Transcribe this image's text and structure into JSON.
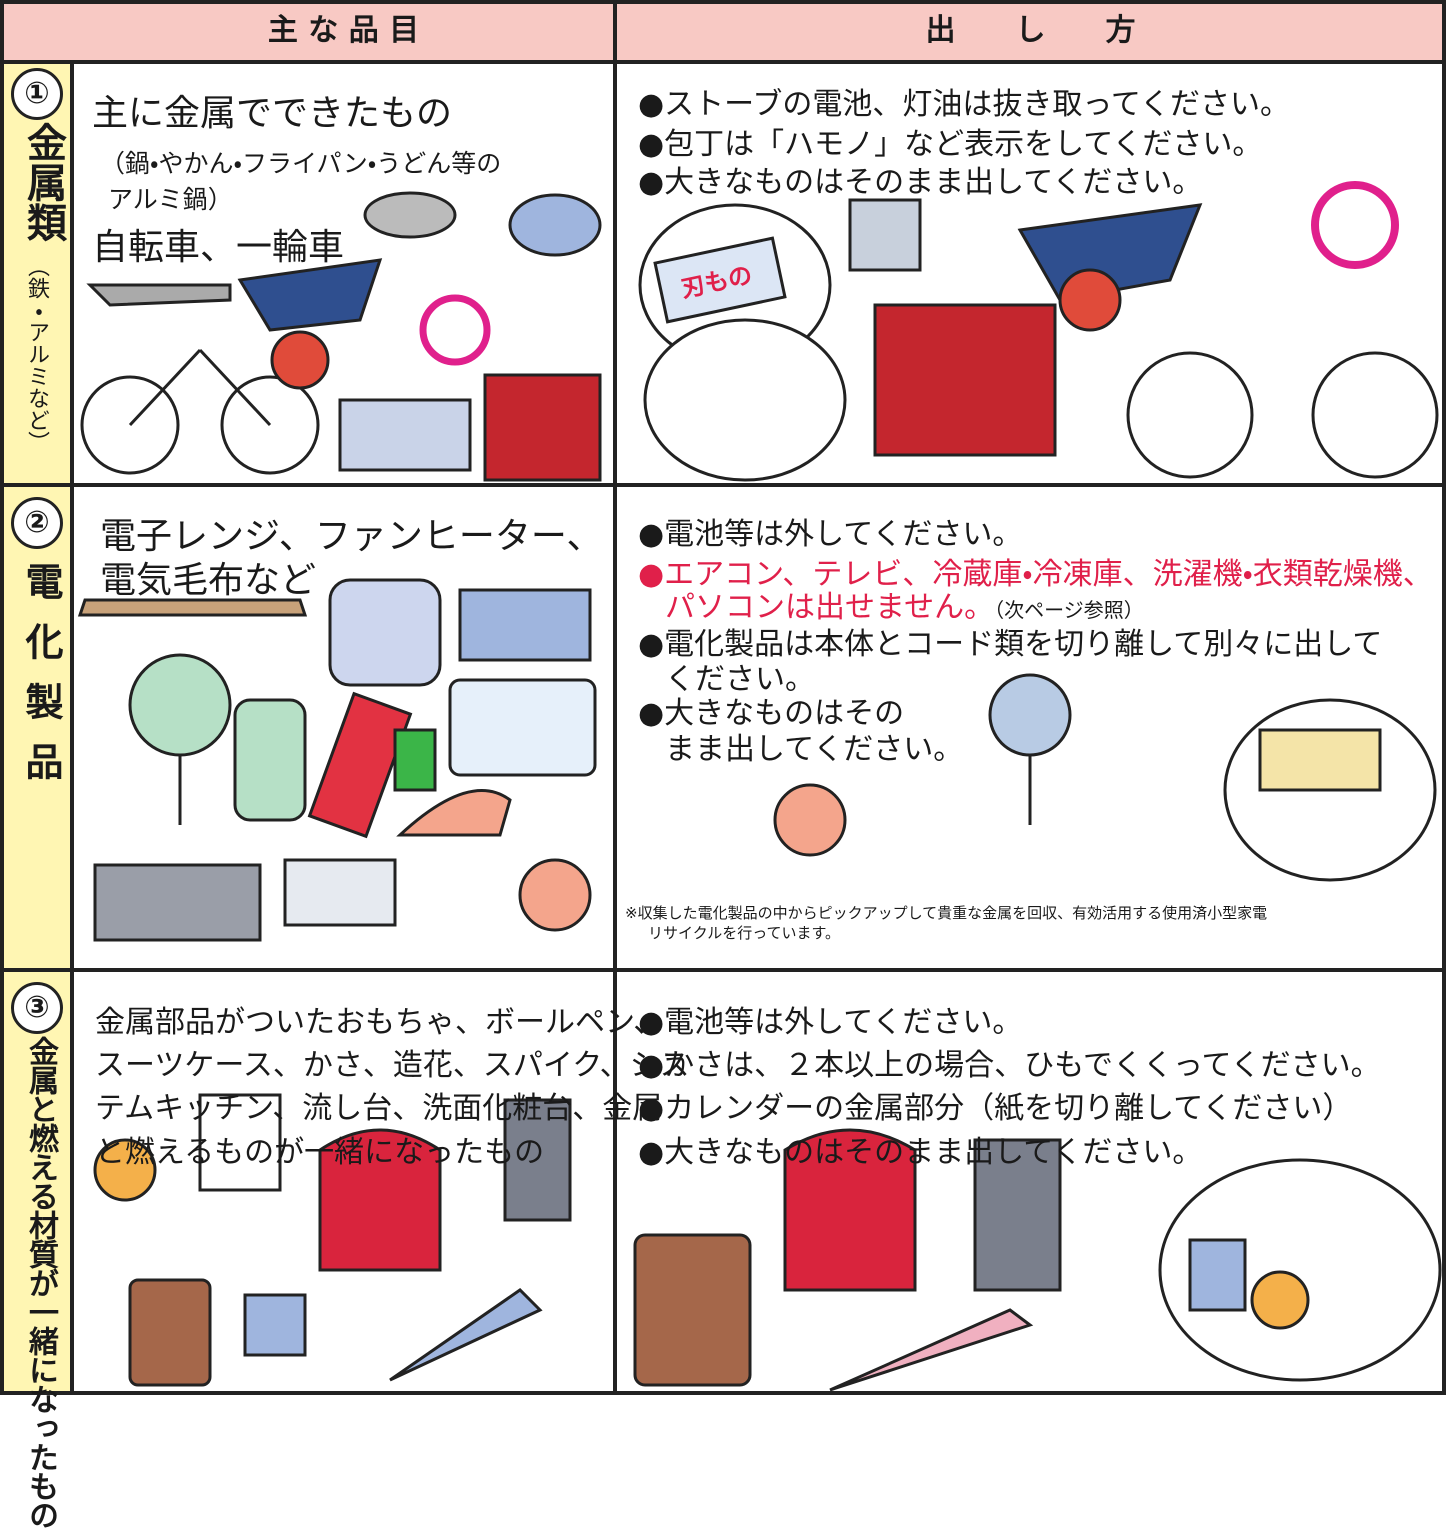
{
  "header": {
    "items": "主 な 品 目",
    "method": "出　　し　　方"
  },
  "rows": [
    {
      "number": "①",
      "category": "金属類",
      "category_note": "（鉄・アルミなど）",
      "items": [
        "主に金属でできたもの",
        "（鍋・やかん・フライパン・うどん等の",
        "アルミ鍋）",
        "自転車、一輪車"
      ],
      "method": [
        "●ストーブの電池、灯油は抜き取ってください。",
        "●包丁は「ハモノ」など表示をしてください。",
        "●大きなものはそのまま出してください。"
      ],
      "label": "刃もの"
    },
    {
      "number": "②",
      "category": "電化製品",
      "items": [
        "電子レンジ、ファンヒーター、",
        "電気毛布など"
      ],
      "method": [
        "●電池等は外してください。",
        "●電化製品は本体とコード類を切り離して別々に出して",
        "ください。",
        "●大きなものはその",
        "まま出してください。"
      ],
      "warning": [
        "●エアコン、テレビ、冷蔵庫・冷凍庫、洗濯機・衣類乾燥機、",
        "パソコンは出せません。"
      ],
      "warning_ref": "（次ページ参照）",
      "note": [
        "※収集した電化製品の中からピックアップして貴重な金属を回収、有効活用する使用済小型家電",
        "リサイクルを行っています。"
      ]
    },
    {
      "number": "③",
      "category": "金属と燃える材質が一緒になったもの",
      "items": [
        "金属部品がついたおもちゃ、ボールペン、",
        "スーツケース、かさ、造花、スパイク、シス",
        "テムキッチン、流し台、洗面化粧台、金属",
        "と燃えるものが一緒になったもの"
      ],
      "method": [
        "●電池等は外してください。",
        "●かさは、２本以上の場合、ひもでくくってください。",
        "●カレンダーの金属部分（紙を切り離してください）",
        "●大きなものはそのまま出してください。"
      ]
    }
  ]
}
